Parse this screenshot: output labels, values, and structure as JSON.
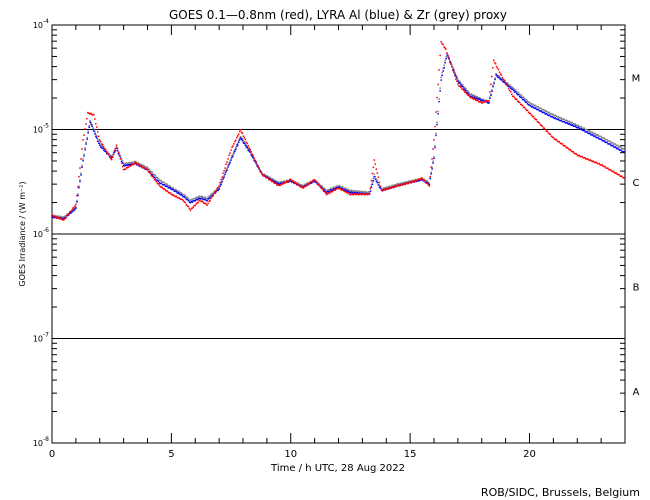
{
  "chart_data": {
    "type": "line",
    "title": "GOES 0.1—0.8nm (red), LYRA Al (blue) & Zr (grey) proxy",
    "xlabel": "Time / h UTC, 28 Aug 2022",
    "ylabel": "GOES Irradiance / (W m⁻²)",
    "xlim": [
      0,
      24
    ],
    "ylim": [
      1e-08,
      0.0001
    ],
    "yscale": "log",
    "x_ticks": [
      "0",
      "5",
      "10",
      "15",
      "20"
    ],
    "y_ticks": [
      {
        "base": "10",
        "exp": "-4"
      },
      {
        "base": "10",
        "exp": "-5"
      },
      {
        "base": "10",
        "exp": "-6"
      },
      {
        "base": "10",
        "exp": "-7"
      },
      {
        "base": "10",
        "exp": "-8"
      }
    ],
    "flare_classes": [
      "M",
      "C",
      "B",
      "A"
    ],
    "reference_lines": [
      1e-05,
      1e-06,
      1e-07
    ],
    "credit": "ROB/SIDC, Brussels, Belgium",
    "series": [
      {
        "name": "Zr (grey)",
        "color": "#808080",
        "points": [
          [
            0,
            1.5e-06
          ],
          [
            0.5,
            1.45e-06
          ],
          [
            1.0,
            1.8e-06
          ],
          [
            1.3,
            5.2e-06
          ],
          [
            1.6,
            1.22e-05
          ],
          [
            2.0,
            7.3e-06
          ],
          [
            2.5,
            5.5e-06
          ],
          [
            2.7,
            6.9e-06
          ],
          [
            3.0,
            4.7e-06
          ],
          [
            3.5,
            4.9e-06
          ],
          [
            4.0,
            4.3e-06
          ],
          [
            4.5,
            3.3e-06
          ],
          [
            5.0,
            2.8e-06
          ],
          [
            5.5,
            2.4e-06
          ],
          [
            5.8,
            2.1e-06
          ],
          [
            6.2,
            2.3e-06
          ],
          [
            6.5,
            2.2e-06
          ],
          [
            7.0,
            2.8e-06
          ],
          [
            7.5,
            5.3e-06
          ],
          [
            7.9,
            8.6e-06
          ],
          [
            8.3,
            6.2e-06
          ],
          [
            8.8,
            3.8e-06
          ],
          [
            9.5,
            3.1e-06
          ],
          [
            10,
            3.3e-06
          ],
          [
            10.5,
            2.9e-06
          ],
          [
            11,
            3.3e-06
          ],
          [
            11.5,
            2.6e-06
          ],
          [
            12,
            2.9e-06
          ],
          [
            12.5,
            2.6e-06
          ],
          [
            13.3,
            2.5e-06
          ],
          [
            13.5,
            3.7e-06
          ],
          [
            13.8,
            2.7e-06
          ],
          [
            14.5,
            3e-06
          ],
          [
            15,
            3.2e-06
          ],
          [
            15.5,
            3.4e-06
          ],
          [
            15.8,
            3.1e-06
          ],
          [
            16.0,
            5.5e-06
          ],
          [
            16.3,
            3.2e-05
          ],
          [
            16.55,
            5.4e-05
          ],
          [
            17.0,
            3e-05
          ],
          [
            17.5,
            2.2e-05
          ],
          [
            18.0,
            1.95e-05
          ],
          [
            18.3,
            1.85e-05
          ],
          [
            18.6,
            3.4e-05
          ],
          [
            19.3,
            2.5e-05
          ],
          [
            20,
            1.8e-05
          ],
          [
            21,
            1.38e-05
          ],
          [
            22,
            1.1e-05
          ],
          [
            23,
            8.5e-06
          ],
          [
            24,
            6.4e-06
          ]
        ]
      },
      {
        "name": "Al (blue)",
        "color": "#0000ff",
        "points": [
          [
            0,
            1.45e-06
          ],
          [
            0.5,
            1.4e-06
          ],
          [
            1.0,
            1.75e-06
          ],
          [
            1.3,
            5e-06
          ],
          [
            1.6,
            1.18e-05
          ],
          [
            2.0,
            7e-06
          ],
          [
            2.5,
            5.3e-06
          ],
          [
            2.7,
            6.6e-06
          ],
          [
            3.0,
            4.5e-06
          ],
          [
            3.5,
            4.7e-06
          ],
          [
            4.0,
            4.1e-06
          ],
          [
            4.5,
            3.1e-06
          ],
          [
            5.0,
            2.7e-06
          ],
          [
            5.5,
            2.3e-06
          ],
          [
            5.8,
            2e-06
          ],
          [
            6.2,
            2.2e-06
          ],
          [
            6.5,
            2.1e-06
          ],
          [
            7.0,
            2.7e-06
          ],
          [
            7.5,
            5.1e-06
          ],
          [
            7.9,
            8.3e-06
          ],
          [
            8.3,
            6e-06
          ],
          [
            8.8,
            3.7e-06
          ],
          [
            9.5,
            3e-06
          ],
          [
            10,
            3.2e-06
          ],
          [
            10.5,
            2.8e-06
          ],
          [
            11,
            3.2e-06
          ],
          [
            11.5,
            2.5e-06
          ],
          [
            12,
            2.8e-06
          ],
          [
            12.5,
            2.5e-06
          ],
          [
            13.3,
            2.4e-06
          ],
          [
            13.5,
            3.5e-06
          ],
          [
            13.8,
            2.6e-06
          ],
          [
            14.5,
            2.9e-06
          ],
          [
            15,
            3.1e-06
          ],
          [
            15.5,
            3.3e-06
          ],
          [
            15.8,
            3e-06
          ],
          [
            16.0,
            5.3e-06
          ],
          [
            16.3,
            3e-05
          ],
          [
            16.55,
            5.2e-05
          ],
          [
            17.0,
            2.9e-05
          ],
          [
            17.5,
            2.1e-05
          ],
          [
            18.0,
            1.9e-05
          ],
          [
            18.3,
            1.8e-05
          ],
          [
            18.6,
            3.3e-05
          ],
          [
            19.3,
            2.4e-05
          ],
          [
            20,
            1.7e-05
          ],
          [
            21,
            1.3e-05
          ],
          [
            22,
            1.05e-05
          ],
          [
            23,
            8e-06
          ],
          [
            24,
            6e-06
          ]
        ]
      },
      {
        "name": "GOES (red)",
        "color": "#ff0000",
        "points": [
          [
            0,
            1.5e-06
          ],
          [
            0.5,
            1.36e-06
          ],
          [
            1.0,
            1.9e-06
          ],
          [
            1.3,
            7.9e-06
          ],
          [
            1.5,
            1.44e-05
          ],
          [
            1.75,
            1.38e-05
          ],
          [
            2.0,
            7.9e-06
          ],
          [
            2.5,
            5.1e-06
          ],
          [
            2.7,
            7.1e-06
          ],
          [
            3.0,
            4.1e-06
          ],
          [
            3.5,
            4.8e-06
          ],
          [
            4.0,
            4.1e-06
          ],
          [
            4.5,
            2.9e-06
          ],
          [
            5.0,
            2.4e-06
          ],
          [
            5.5,
            2.1e-06
          ],
          [
            5.8,
            1.7e-06
          ],
          [
            6.2,
            2.1e-06
          ],
          [
            6.5,
            1.9e-06
          ],
          [
            7.0,
            2.9e-06
          ],
          [
            7.5,
            6.4e-06
          ],
          [
            7.9,
            9.9e-06
          ],
          [
            8.3,
            6.4e-06
          ],
          [
            8.8,
            3.7e-06
          ],
          [
            9.5,
            2.9e-06
          ],
          [
            10,
            3.3e-06
          ],
          [
            10.5,
            2.75e-06
          ],
          [
            11,
            3.3e-06
          ],
          [
            11.5,
            2.4e-06
          ],
          [
            12,
            2.75e-06
          ],
          [
            12.5,
            2.4e-06
          ],
          [
            13.3,
            2.4e-06
          ],
          [
            13.5,
            5.1e-06
          ],
          [
            13.8,
            2.6e-06
          ],
          [
            14.5,
            2.9e-06
          ],
          [
            15,
            3.1e-06
          ],
          [
            15.5,
            3.4e-06
          ],
          [
            15.8,
            2.9e-06
          ],
          [
            16.0,
            7.9e-06
          ],
          [
            16.3,
            6.9e-05
          ],
          [
            16.5,
            5.8e-05
          ],
          [
            17.0,
            2.7e-05
          ],
          [
            17.5,
            2.05e-05
          ],
          [
            18.0,
            1.8e-05
          ],
          [
            18.3,
            1.9e-05
          ],
          [
            18.5,
            4.6e-05
          ],
          [
            18.7,
            3.7e-05
          ],
          [
            19.3,
            2.1e-05
          ],
          [
            20,
            1.44e-05
          ],
          [
            21,
            8.3e-06
          ],
          [
            22,
            5.7e-06
          ],
          [
            23,
            4.6e-06
          ],
          [
            24,
            3.4e-06
          ]
        ]
      }
    ]
  }
}
